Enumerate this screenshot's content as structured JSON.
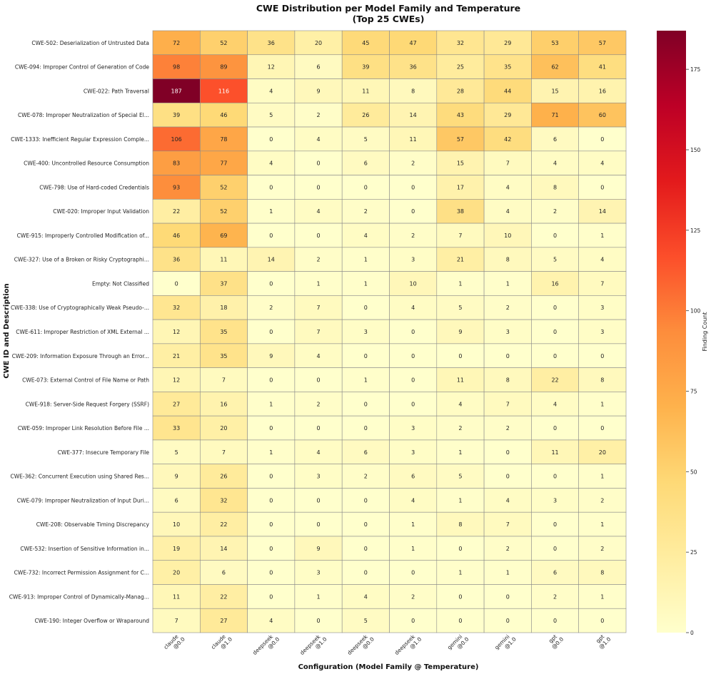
{
  "chart_data": {
    "type": "heatmap",
    "title": "CWE Distribution per Model Family and Temperature",
    "subtitle": "(Top 25 CWEs)",
    "xlabel": "Configuration (Model Family @ Temperature)",
    "ylabel": "CWE ID and Description",
    "colorbar_label": "Finding Count",
    "color_range": [
      0,
      187
    ],
    "colorbar_ticks": [
      0,
      25,
      50,
      75,
      100,
      125,
      150,
      175
    ],
    "columns": [
      {
        "family": "claude",
        "temp": "@0.0"
      },
      {
        "family": "claude",
        "temp": "@1.0"
      },
      {
        "family": "deepseek",
        "temp": "@0.0"
      },
      {
        "family": "deepseek",
        "temp": "@1.0"
      },
      {
        "family": "deepseek",
        "temp": "@0.0"
      },
      {
        "family": "deepseek",
        "temp": "@1.0"
      },
      {
        "family": "gemini",
        "temp": "@0.0"
      },
      {
        "family": "gemini",
        "temp": "@1.0"
      },
      {
        "family": "gpt",
        "temp": "@0.0"
      },
      {
        "family": "gpt",
        "temp": "@1.0"
      }
    ],
    "rows": [
      "CWE-502: Deserialization of Untrusted Data",
      "CWE-094: Improper Control of Generation of Code",
      "CWE-022: Path Traversal",
      "CWE-078: Improper Neutralization of Special El...",
      "CWE-1333: Inefficient Regular Expression Comple...",
      "CWE-400: Uncontrolled Resource Consumption",
      "CWE-798: Use of Hard-coded Credentials",
      "CWE-020: Improper Input Validation",
      "CWE-915: Improperly Controlled Modification of...",
      "CWE-327: Use of a Broken or Risky Cryptographi...",
      "Empty: Not Classified",
      "CWE-338: Use of Cryptographically Weak Pseudo-...",
      "CWE-611: Improper Restriction of XML External ...",
      "CWE-209: Information Exposure Through an Error...",
      "CWE-073: External Control of File Name or Path",
      "CWE-918: Server-Side Request Forgery (SSRF)",
      "CWE-059: Improper Link Resolution Before File ...",
      "CWE-377: Insecure Temporary File",
      "CWE-362: Concurrent Execution using Shared Res...",
      "CWE-079: Improper Neutralization of Input Duri...",
      "CWE-208: Observable Timing Discrepancy",
      "CWE-532: Insertion of Sensitive Information in...",
      "CWE-732: Incorrect Permission Assignment for C...",
      "CWE-913: Improper Control of Dynamically-Manag...",
      "CWE-190: Integer Overflow or Wraparound"
    ],
    "values": [
      [
        72,
        52,
        36,
        20,
        45,
        47,
        32,
        29,
        53,
        57
      ],
      [
        98,
        89,
        12,
        6,
        39,
        36,
        25,
        35,
        62,
        41
      ],
      [
        187,
        116,
        4,
        9,
        11,
        8,
        28,
        44,
        15,
        16
      ],
      [
        39,
        46,
        5,
        2,
        26,
        14,
        43,
        29,
        71,
        60
      ],
      [
        106,
        78,
        0,
        4,
        5,
        11,
        57,
        42,
        6,
        0
      ],
      [
        83,
        77,
        4,
        0,
        6,
        2,
        15,
        7,
        4,
        4
      ],
      [
        93,
        52,
        0,
        0,
        0,
        0,
        17,
        4,
        8,
        0
      ],
      [
        22,
        52,
        1,
        4,
        2,
        0,
        38,
        4,
        2,
        14
      ],
      [
        46,
        69,
        0,
        0,
        4,
        2,
        7,
        10,
        0,
        1
      ],
      [
        36,
        11,
        14,
        2,
        1,
        3,
        21,
        8,
        5,
        4
      ],
      [
        0,
        37,
        0,
        1,
        1,
        10,
        1,
        1,
        16,
        7
      ],
      [
        32,
        18,
        2,
        7,
        0,
        4,
        5,
        2,
        0,
        3
      ],
      [
        12,
        35,
        0,
        7,
        3,
        0,
        9,
        3,
        0,
        3
      ],
      [
        21,
        35,
        9,
        4,
        0,
        0,
        0,
        0,
        0,
        0
      ],
      [
        12,
        7,
        0,
        0,
        1,
        0,
        11,
        8,
        22,
        8
      ],
      [
        27,
        16,
        1,
        2,
        0,
        0,
        4,
        7,
        4,
        1
      ],
      [
        33,
        20,
        0,
        0,
        0,
        3,
        2,
        2,
        0,
        0
      ],
      [
        5,
        7,
        1,
        4,
        6,
        3,
        1,
        0,
        11,
        20
      ],
      [
        9,
        26,
        0,
        3,
        2,
        6,
        5,
        0,
        0,
        1
      ],
      [
        6,
        32,
        0,
        0,
        0,
        4,
        1,
        4,
        3,
        2
      ],
      [
        10,
        22,
        0,
        0,
        0,
        1,
        8,
        7,
        0,
        1
      ],
      [
        19,
        14,
        0,
        9,
        0,
        1,
        0,
        2,
        0,
        2
      ],
      [
        20,
        6,
        0,
        3,
        0,
        0,
        1,
        1,
        6,
        8
      ],
      [
        11,
        22,
        0,
        1,
        4,
        2,
        0,
        0,
        2,
        1
      ],
      [
        7,
        27,
        4,
        0,
        5,
        0,
        0,
        0,
        0,
        0
      ]
    ]
  }
}
